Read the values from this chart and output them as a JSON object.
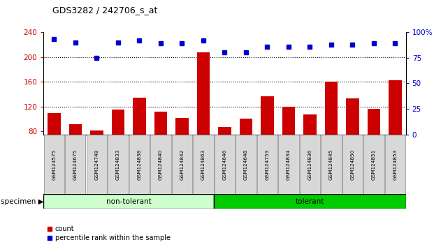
{
  "title": "GDS3282 / 242706_s_at",
  "categories": [
    "GSM124575",
    "GSM124675",
    "GSM124748",
    "GSM124833",
    "GSM124838",
    "GSM124840",
    "GSM124842",
    "GSM124863",
    "GSM124646",
    "GSM124648",
    "GSM124753",
    "GSM124834",
    "GSM124836",
    "GSM124845",
    "GSM124850",
    "GSM124851",
    "GSM124853"
  ],
  "count_values": [
    110,
    92,
    82,
    115,
    135,
    112,
    102,
    207,
    87,
    101,
    137,
    120,
    107,
    160,
    133,
    117,
    162
  ],
  "percentile_values": [
    93,
    90,
    75,
    90,
    92,
    89,
    89,
    92,
    80,
    80,
    86,
    86,
    86,
    88,
    88,
    89,
    89
  ],
  "bar_color": "#cc0000",
  "dot_color": "#0000cc",
  "ylim_left": [
    75,
    240
  ],
  "ylim_right": [
    0,
    100
  ],
  "yticks_left": [
    80,
    120,
    160,
    200,
    240
  ],
  "yticks_right": [
    0,
    25,
    50,
    75,
    100
  ],
  "group_labels": [
    "non-tolerant",
    "tolerant"
  ],
  "group_colors": [
    "#ccffcc",
    "#00cc00"
  ],
  "non_tolerant_count": 8,
  "total_count": 17,
  "specimen_label": "specimen",
  "legend_count_label": "count",
  "legend_percentile_label": "percentile rank within the sample",
  "grid_color": "black",
  "bg_color": "white",
  "tick_label_bg": "#d8d8d8"
}
